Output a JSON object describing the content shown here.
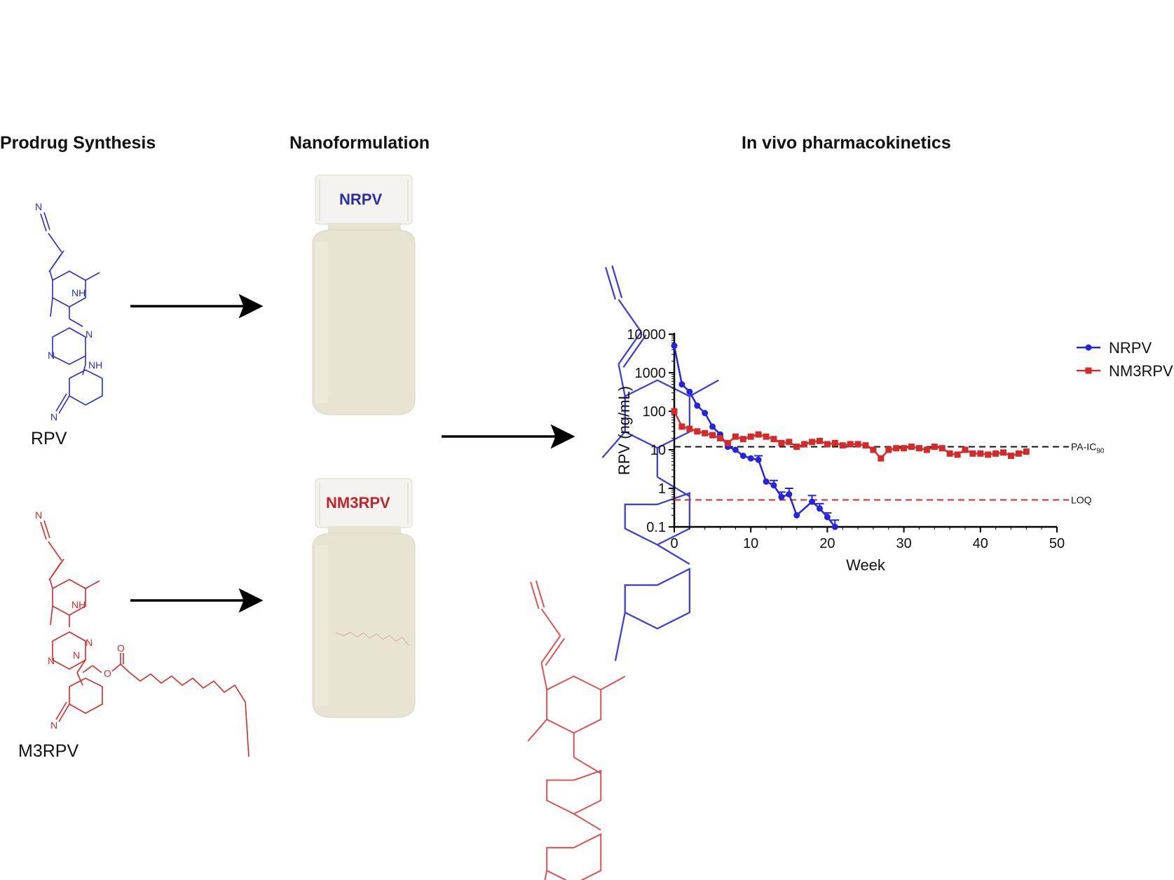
{
  "headings": {
    "prodrug": "Prodrug Synthesis",
    "nanoformulation": "Nanoformulation",
    "pk": "In vivo pharmacokinetics"
  },
  "molecules": {
    "rpv": {
      "name": "RPV",
      "color": "#2b2bd6"
    },
    "m3rpv": {
      "name": "M3RPV",
      "color": "#d42a2a"
    },
    "atoms": {
      "n": "N",
      "nh": "NH",
      "o": "O"
    }
  },
  "vials": {
    "nrpv": {
      "label": "NRPV",
      "label_color": "#2b2fa6"
    },
    "nm3rpv": {
      "label": "NM3RPV",
      "label_color": "#c4252c"
    }
  },
  "chart_data": {
    "type": "line",
    "xlabel": "Week",
    "ylabel": "RPV (ng/mL)",
    "x_scale": "linear",
    "y_scale": "log",
    "xlim": [
      0,
      50
    ],
    "ylim": [
      0.1,
      10000
    ],
    "x_ticks": [
      "0",
      "10",
      "20",
      "30",
      "40",
      "50"
    ],
    "y_ticks": [
      "0.1",
      "1",
      "10",
      "100",
      "1000",
      "10000"
    ],
    "legend_position": "top-right",
    "reference_lines": [
      {
        "label": "PA-IC90",
        "label_main": "PA-IC",
        "label_sub": "90",
        "value": 12,
        "color": "#111111",
        "style": "dashed"
      },
      {
        "label": "LOQ",
        "value": 0.5,
        "color": "#d42a2a",
        "style": "dashed"
      }
    ],
    "series": [
      {
        "name": "NRPV",
        "color": "#2323e0",
        "marker": "circle",
        "x": [
          0,
          1,
          2,
          3,
          4,
          5,
          6,
          7,
          8,
          9,
          10,
          11,
          12,
          13,
          14,
          15,
          16,
          18,
          19,
          20,
          21
        ],
        "y": [
          5000,
          500,
          320,
          140,
          90,
          40,
          25,
          12,
          10,
          7,
          6,
          5.5,
          1.5,
          1.2,
          0.6,
          0.7,
          0.2,
          0.45,
          0.3,
          0.18,
          0.1
        ],
        "error": [
          0,
          0,
          0,
          0,
          0,
          0,
          0,
          0,
          0,
          0,
          0,
          1.5,
          0,
          0.4,
          0.2,
          0.3,
          0,
          0.2,
          0.1,
          0.05,
          0.05
        ]
      },
      {
        "name": "NM3RPV",
        "color": "#d42a2a",
        "marker": "square",
        "x": [
          0,
          1,
          2,
          3,
          4,
          5,
          6,
          7,
          8,
          9,
          10,
          11,
          12,
          13,
          14,
          15,
          16,
          17,
          18,
          19,
          20,
          21,
          22,
          23,
          24,
          25,
          26,
          27,
          28,
          29,
          30,
          31,
          32,
          33,
          34,
          35,
          36,
          37,
          38,
          39,
          40,
          41,
          42,
          43,
          44,
          45,
          46
        ],
        "y": [
          100,
          40,
          35,
          30,
          27,
          24,
          20,
          15,
          22,
          19,
          22,
          25,
          22,
          19,
          15,
          16,
          12,
          14,
          16,
          17,
          14,
          15,
          13,
          14,
          14,
          13,
          10,
          6,
          10,
          11,
          11,
          12,
          11,
          10,
          12,
          11,
          8,
          7.5,
          10,
          8,
          8,
          7.5,
          8,
          8.5,
          7,
          8,
          9
        ]
      }
    ]
  }
}
